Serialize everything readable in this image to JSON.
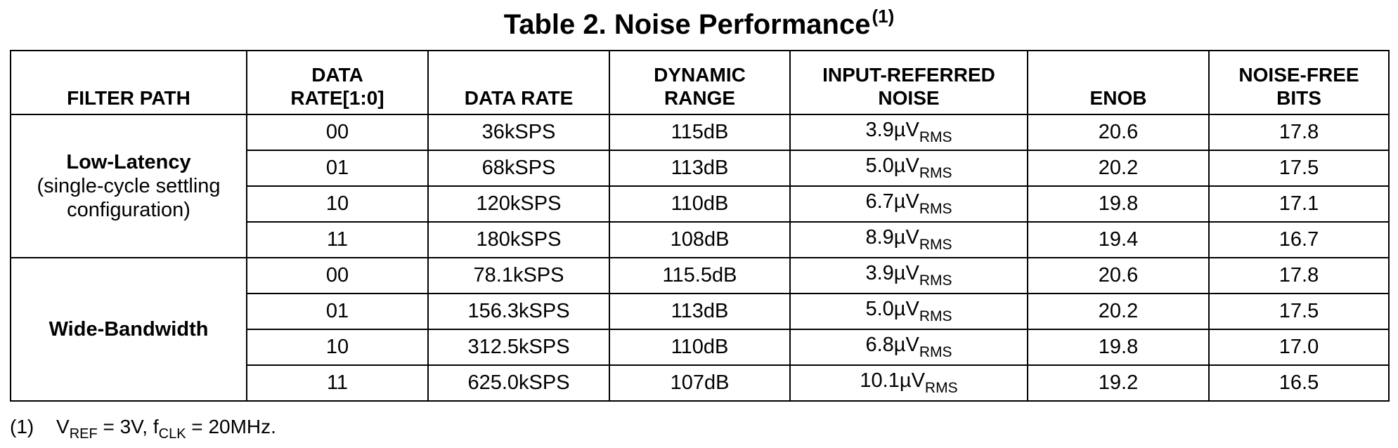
{
  "title": {
    "text": "Table 2. Noise Performance",
    "note_ref": "(1)"
  },
  "headers": [
    "FILTER PATH",
    "DATA RATE[1:0]",
    "DATA RATE",
    "DYNAMIC RANGE",
    "INPUT-REFERRED NOISE",
    "ENOB",
    "NOISE-FREE BITS"
  ],
  "noise_unit": {
    "base": "V",
    "sub": "RMS",
    "prefix_symbol": "µ"
  },
  "groups": [
    {
      "name": "Low-Latency",
      "desc_line1": "(single-cycle settling",
      "desc_line2": "configuration)",
      "rows": [
        {
          "code": "00",
          "rate": "36kSPS",
          "range": "115dB",
          "noise": "3.9",
          "enob": "20.6",
          "nfb": "17.8"
        },
        {
          "code": "01",
          "rate": "68kSPS",
          "range": "113dB",
          "noise": "5.0",
          "enob": "20.2",
          "nfb": "17.5"
        },
        {
          "code": "10",
          "rate": "120kSPS",
          "range": "110dB",
          "noise": "6.7",
          "enob": "19.8",
          "nfb": "17.1"
        },
        {
          "code": "11",
          "rate": "180kSPS",
          "range": "108dB",
          "noise": "8.9",
          "enob": "19.4",
          "nfb": "16.7"
        }
      ]
    },
    {
      "name": "Wide-Bandwidth",
      "rows": [
        {
          "code": "00",
          "rate": "78.1kSPS",
          "range": "115.5dB",
          "noise": "3.9",
          "enob": "20.6",
          "nfb": "17.8"
        },
        {
          "code": "01",
          "rate": "156.3kSPS",
          "range": "113dB",
          "noise": "5.0",
          "enob": "20.2",
          "nfb": "17.5"
        },
        {
          "code": "10",
          "rate": "312.5kSPS",
          "range": "110dB",
          "noise": "6.8",
          "enob": "19.8",
          "nfb": "17.0"
        },
        {
          "code": "11",
          "rate": "625.0kSPS",
          "range": "107dB",
          "noise": "10.1",
          "enob": "19.2",
          "nfb": "16.5"
        }
      ]
    }
  ],
  "footnote": {
    "mark": "(1)",
    "vref_base": "V",
    "vref_sub": "REF",
    "vref_value": " = 3V, ",
    "fclk_base": "f",
    "fclk_sub": "CLK",
    "fclk_value": " = 20MHz."
  }
}
